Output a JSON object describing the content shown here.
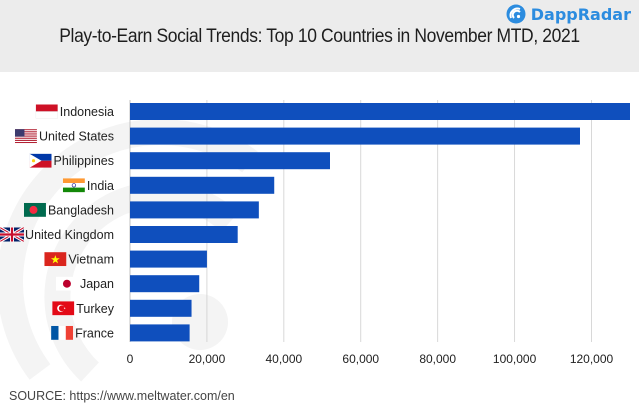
{
  "brand": {
    "name": "DappRadar",
    "logo_icon": "dappradar-logo-icon",
    "color": "#2c8cdf"
  },
  "chart_data": {
    "type": "bar",
    "orientation": "horizontal",
    "title": "Play-to-Earn Social Trends: Top 10 Countries in November MTD, 2021",
    "categories": [
      "Indonesia",
      "United States",
      "Philippines",
      "India",
      "Bangladesh",
      "United Kingdom",
      "Vietnam",
      "Japan",
      "Turkey",
      "France"
    ],
    "values": [
      130000,
      117000,
      52000,
      37500,
      33500,
      28000,
      20000,
      18000,
      16000,
      15500
    ],
    "flags": [
      "indonesia-flag-icon",
      "united-states-flag-icon",
      "philippines-flag-icon",
      "india-flag-icon",
      "bangladesh-flag-icon",
      "united-kingdom-flag-icon",
      "vietnam-flag-icon",
      "japan-flag-icon",
      "turkey-flag-icon",
      "france-flag-icon"
    ],
    "xlim": [
      0,
      130000
    ],
    "xticks": [
      0,
      20000,
      40000,
      60000,
      80000,
      100000,
      120000
    ],
    "xtick_labels": [
      "0",
      "20,000",
      "40,000",
      "60,000",
      "80,000",
      "100,000",
      "120,000"
    ],
    "xlabel": "",
    "ylabel": "",
    "grid": true,
    "legend": "none",
    "bar_color": "#0f4fbd"
  },
  "source": "SOURCE: https://www.meltwater.com/en"
}
